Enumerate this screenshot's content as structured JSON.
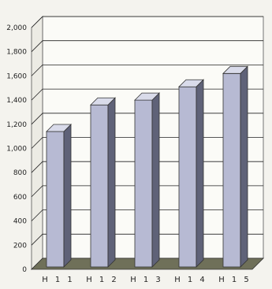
{
  "chart_data": {
    "type": "bar",
    "categories": [
      "H11",
      "H12",
      "H13",
      "H14",
      "H15"
    ],
    "category_labels": [
      "H 1 1",
      "H 1 2",
      "H 1 3",
      "H 1 4",
      "H 1 5"
    ],
    "values": [
      1140,
      1360,
      1400,
      1510,
      1620
    ],
    "title": "",
    "xlabel": "",
    "ylabel": "",
    "ylim": [
      0,
      2000
    ],
    "yticks": [
      0,
      200,
      400,
      600,
      800,
      1000,
      1200,
      1400,
      1600,
      1800,
      2000
    ],
    "ytick_labels": [
      "0",
      "200",
      "400",
      "600",
      "800",
      "1,000",
      "1,200",
      "1,400",
      "1,600",
      "1,800",
      "2,000"
    ],
    "grid": true,
    "three_d": true,
    "colors": {
      "bar_front": "#b7bad3",
      "bar_side": "#5f6278",
      "bar_top": "#d9dbea",
      "floor": "#6f7059",
      "wall": "#fbfbf7",
      "grid": "#222222"
    }
  }
}
